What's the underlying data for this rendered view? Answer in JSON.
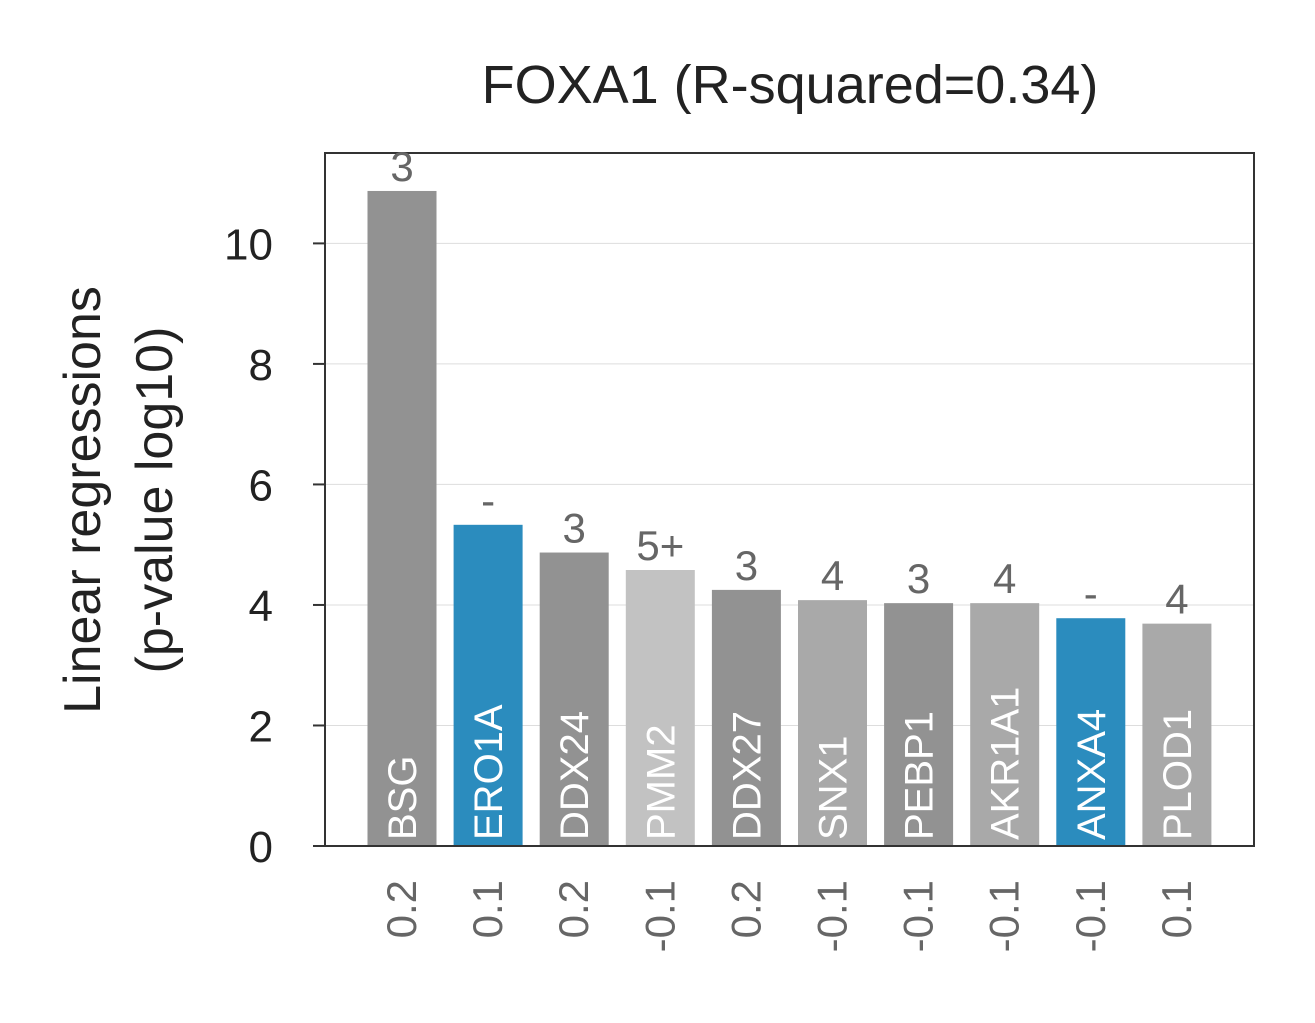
{
  "chart_data": {
    "type": "bar",
    "title": "FOXA1 (R-squared=0.34)",
    "ylabel_line1": "Linear regressions",
    "ylabel_line2": "(p-value log10)",
    "xlabel": "",
    "ylim": [
      0,
      11.5
    ],
    "yticks": [
      "0",
      "2",
      "4",
      "6",
      "8",
      "10"
    ],
    "grid": "horizontal",
    "categories": [
      "BSG",
      "ERO1A",
      "DDX24",
      "PMM2",
      "DDX27",
      "SNX1",
      "PEBP1",
      "AKR1A1",
      "ANXA4",
      "PLOD1"
    ],
    "values": [
      10.87,
      5.33,
      4.87,
      4.58,
      4.25,
      4.08,
      4.03,
      4.03,
      3.78,
      3.69
    ],
    "top_labels": [
      "3",
      "-",
      "3",
      "5+",
      "3",
      "4",
      "3",
      "4",
      "-",
      "4"
    ],
    "bottom_labels": [
      "0.2",
      "0.1",
      "0.2",
      "-0.1",
      "0.2",
      "-0.1",
      "-0.1",
      "-0.1",
      "-0.1",
      "0.1"
    ],
    "colors": [
      "#929292",
      "#2b8cbe",
      "#929292",
      "#c2c2c2",
      "#929292",
      "#a9a9a9",
      "#929292",
      "#a9a9a9",
      "#2b8cbe",
      "#a9a9a9"
    ]
  }
}
